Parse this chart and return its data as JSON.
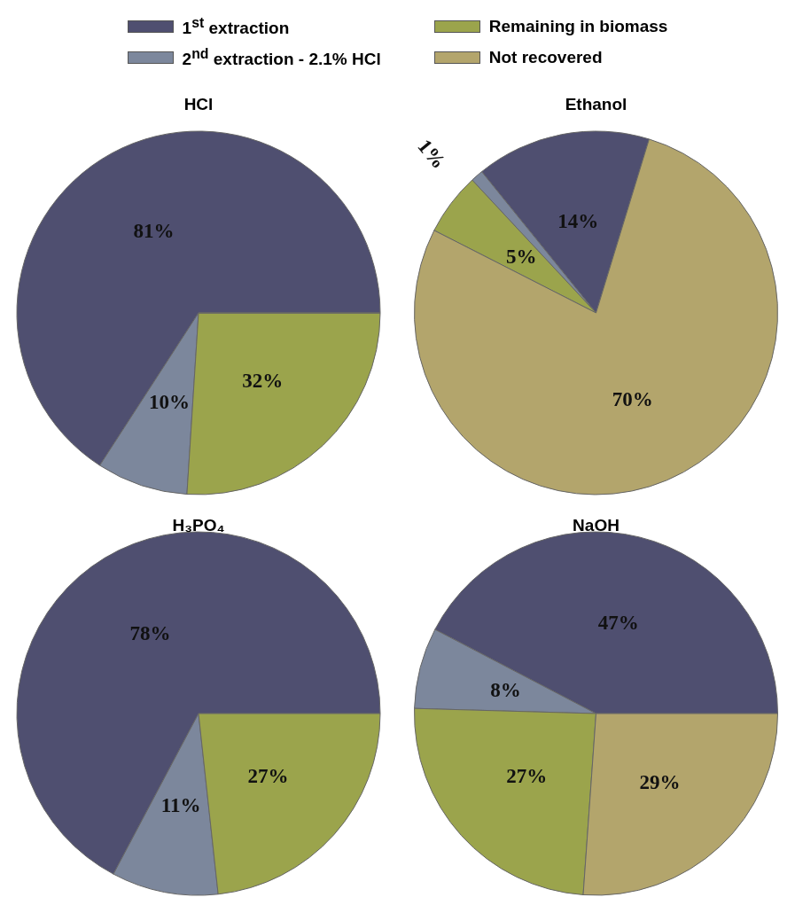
{
  "chart_data": [
    {
      "type": "pie",
      "title": "HCl",
      "categories": [
        "1$^{st}$ extraction",
        "2$^{nd}$ extraction - 2.1% HCl",
        "Remaining in biomass",
        "Not recovered"
      ],
      "values": [
        81,
        10,
        32,
        0
      ],
      "colors": [
        "#4f4f70",
        "#7c879c",
        "#9ba44c",
        "#b3a56c"
      ],
      "value_labels": [
        "81%",
        "10%",
        "32%",
        null
      ],
      "legend": "top"
    },
    {
      "type": "pie",
      "title": "Ethanol",
      "categories": [
        null,
        null,
        null,
        null
      ],
      "values": [
        14,
        1,
        5,
        70
      ],
      "colors": [
        "#4f4f70",
        "#7c879c",
        "#9ba44c",
        "#b3a56c"
      ],
      "value_labels": [
        "14%",
        "1%",
        "5%",
        "70%"
      ]
    },
    {
      "type": "pie",
      "title": "H₃PO₄",
      "categories": [
        null,
        null,
        null
      ],
      "values": [
        78,
        11,
        27
      ],
      "colors": [
        "#4f4f70",
        "#7c879c",
        "#9ba44c"
      ],
      "value_labels": [
        "78%",
        "11%",
        "27%"
      ]
    },
    {
      "type": "pie",
      "title": "NaOH",
      "categories": [
        null,
        null,
        null,
        null
      ],
      "values": [
        47,
        8,
        27,
        29
      ],
      "colors": [
        "#4f4f70",
        "#7c879c",
        "#9ba44c",
        "#b3a56c"
      ],
      "value_labels": [
        "47%",
        "8%",
        "27%",
        "29%"
      ]
    }
  ]
}
